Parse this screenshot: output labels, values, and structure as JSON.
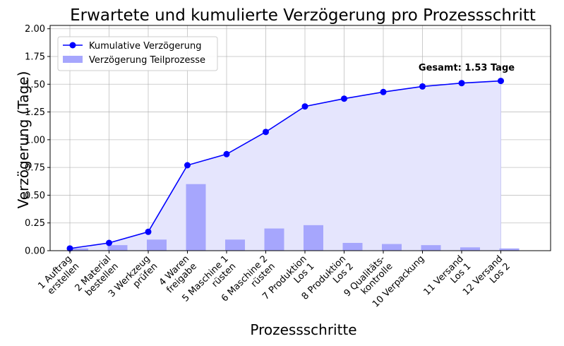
{
  "chart_data": {
    "type": "bar+line",
    "title": "Erwartete und kumulierte Verzögerung pro Prozessschritt",
    "xlabel": "Prozessschritte",
    "ylabel": "Verzögerung (Tage)",
    "ylim": [
      0,
      2.03
    ],
    "yticks": [
      "0.00",
      "0.25",
      "0.50",
      "0.75",
      "1.00",
      "1.25",
      "1.50",
      "1.75",
      "2.00"
    ],
    "grid": true,
    "legend_position": "top-left",
    "categories": [
      [
        "1 Auftrag",
        "erstellen"
      ],
      [
        "2 Material",
        "bestellen"
      ],
      [
        "3 Werkzeug",
        "prüfen"
      ],
      [
        "4 Waren",
        "freigabe"
      ],
      [
        "5 Maschine 1",
        "rüsten"
      ],
      [
        "6 Maschine 2",
        "rüsten"
      ],
      [
        "7 Produktion",
        "Los 1"
      ],
      [
        "8 Produktion",
        "Los 2"
      ],
      [
        "9 Qualitäts-",
        "kontrolle"
      ],
      [
        "10 Verpackung"
      ],
      [
        "11 Versand",
        "Los 1"
      ],
      [
        "12 Versand",
        "Los 2"
      ]
    ],
    "series": [
      {
        "name": "Kumulative Verzögerung",
        "kind": "line",
        "color": "#0000ff",
        "values": [
          0.02,
          0.07,
          0.17,
          0.77,
          0.87,
          1.07,
          1.3,
          1.37,
          1.43,
          1.48,
          1.51,
          1.53
        ]
      },
      {
        "name": "Verzögerung Teilprozesse",
        "kind": "bar",
        "color": "#a6a6fd",
        "values": [
          0.02,
          0.05,
          0.1,
          0.6,
          0.1,
          0.2,
          0.23,
          0.07,
          0.06,
          0.05,
          0.03,
          0.02
        ]
      }
    ],
    "area_fill_color": "#e5e5fd",
    "annotation": "Gesamt: 1.53 Tage"
  }
}
